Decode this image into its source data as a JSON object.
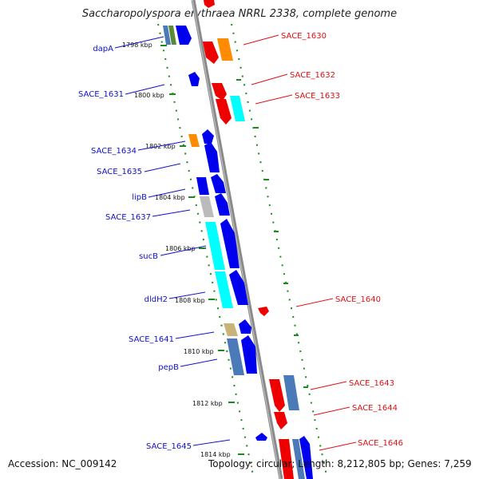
{
  "title": "Saccharopolyspora erythraea NRRL 2338, complete genome",
  "footer": {
    "accession": "Accession: NC_009142",
    "topology": "Topology: circular; Length: 8,212,805 bp; Genes: 7,259"
  },
  "colors": {
    "backbone": "#8a8a8a",
    "dotted_guide": "#1a8a1a",
    "forward_gene": "#0000ee",
    "reverse_gene": "#ee0000",
    "orange": "#ff8c00",
    "cyan": "#00ffff",
    "steelblue": "#4a7ab8",
    "khaki": "#c8b478",
    "gray": "#bbbbbb",
    "green": "#5a8a3a",
    "forward_label": "#1010c8",
    "reverse_label": "#e01010"
  },
  "tick_labels": [
    {
      "id": "t1798",
      "text": "1798 kbp"
    },
    {
      "id": "t1800",
      "text": "1800 kbp"
    },
    {
      "id": "t1802",
      "text": "1802 kbp"
    },
    {
      "id": "t1804",
      "text": "1804 kbp"
    },
    {
      "id": "t1806",
      "text": "1806 kbp"
    },
    {
      "id": "t1808",
      "text": "1808 kbp"
    },
    {
      "id": "t1810",
      "text": "1810 kbp"
    },
    {
      "id": "t1812",
      "text": "1812 kbp"
    },
    {
      "id": "t1814",
      "text": "1814 kbp"
    }
  ],
  "forward_labels": [
    {
      "id": "dapA",
      "text": "dapA"
    },
    {
      "id": "SACE_1631",
      "text": "SACE_1631"
    },
    {
      "id": "SACE_1634",
      "text": "SACE_1634"
    },
    {
      "id": "SACE_1635",
      "text": "SACE_1635"
    },
    {
      "id": "lipB",
      "text": "lipB"
    },
    {
      "id": "SACE_1637",
      "text": "SACE_1637"
    },
    {
      "id": "sucB",
      "text": "sucB"
    },
    {
      "id": "dldH2",
      "text": "dldH2"
    },
    {
      "id": "SACE_1641",
      "text": "SACE_1641"
    },
    {
      "id": "pepB",
      "text": "pepB"
    },
    {
      "id": "SACE_1645",
      "text": "SACE_1645"
    }
  ],
  "reverse_labels": [
    {
      "id": "SACE_1630",
      "text": "SACE_1630"
    },
    {
      "id": "SACE_1632",
      "text": "SACE_1632"
    },
    {
      "id": "SACE_1633",
      "text": "SACE_1633"
    },
    {
      "id": "SACE_1640",
      "text": "SACE_1640"
    },
    {
      "id": "SACE_1643",
      "text": "SACE_1643"
    },
    {
      "id": "SACE_1644",
      "text": "SACE_1644"
    },
    {
      "id": "SACE_1646",
      "text": "SACE_1646"
    }
  ]
}
